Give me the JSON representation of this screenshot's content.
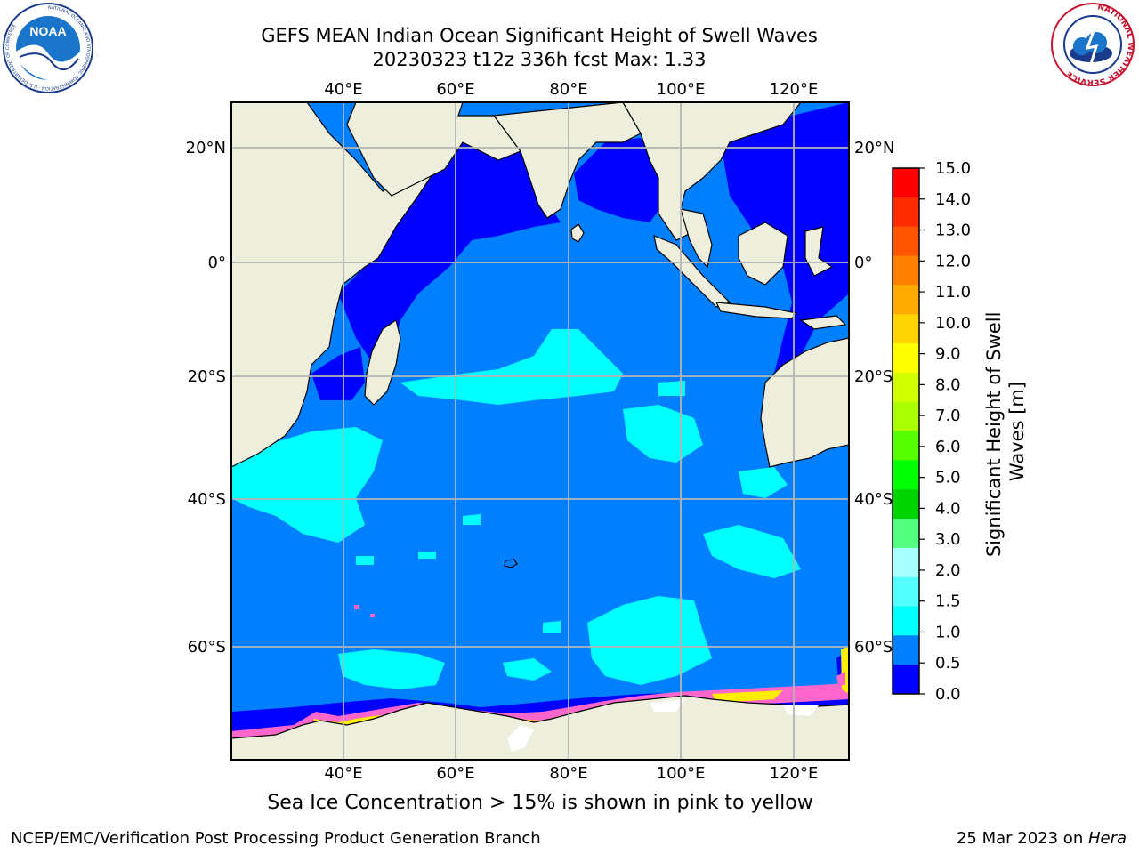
{
  "header": {
    "title_line1": "GEFS MEAN Indian Ocean Significant Height of Swell Waves",
    "title_line2": "20230323 t12z 336h fcst   Max: 1.33"
  },
  "logos": {
    "noaa": {
      "text": "NOAA",
      "ring_text": "NATIONAL OCEANIC AND ATMOSPHERIC ADMINISTRATION · U.S. DEPARTMENT OF COMMERCE"
    },
    "nws": {
      "ring_text": "NATIONAL WEATHER SERVICE"
    }
  },
  "map": {
    "lon_labels": [
      "40°E",
      "60°E",
      "80°E",
      "100°E",
      "120°E"
    ],
    "lat_labels_left": [
      "20°N",
      "0°",
      "20°S",
      "40°S",
      "60°S"
    ],
    "lat_labels_right": [
      "20°N",
      "0°",
      "20°S",
      "40°S",
      "60°S"
    ],
    "colors": {
      "land": "#eeeedd",
      "ocean_low": "#0000ff",
      "ocean_mid": "#0080ff",
      "swell_high": "#00ffff",
      "grid": "#b4b4b4",
      "ice_pink": "#ff66cc",
      "ice_yellow": "#ffee00"
    }
  },
  "colorbar": {
    "label": "Significant Height of Swell Waves [m]",
    "ticks": [
      "15.0",
      "14.0",
      "13.0",
      "12.0",
      "11.0",
      "10.0",
      "9.0",
      "8.0",
      "7.0",
      "6.0",
      "5.0",
      "4.0",
      "3.0",
      "2.0",
      "1.5",
      "1.0",
      "0.5",
      "0.0"
    ],
    "colors_top_to_bottom": [
      "#ff0000",
      "#ff2a00",
      "#ff5500",
      "#ff7f00",
      "#ffaa00",
      "#ffd400",
      "#ffff00",
      "#d4ff00",
      "#aaff00",
      "#55ff00",
      "#00ff00",
      "#00d400",
      "#55ff80",
      "#aaffff",
      "#55ffff",
      "#00ffff",
      "#0080ff",
      "#0000ff"
    ]
  },
  "caption": "Sea Ice Concentration > 15% is shown in pink to yellow",
  "footer": {
    "left": "NCEP/EMC/Verification Post Processing Product Generation Branch",
    "right_date": "25 Mar 2023 on ",
    "right_host": "Hera"
  }
}
